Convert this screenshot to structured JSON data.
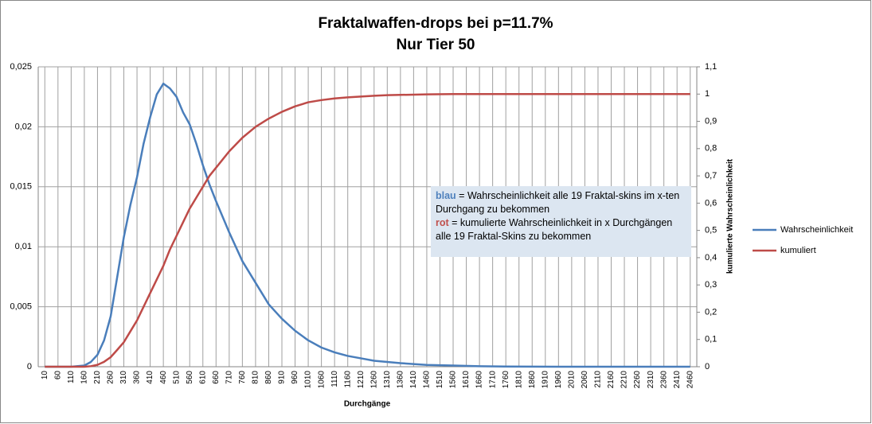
{
  "chart_data": {
    "type": "line",
    "title": "Fraktalwaffen-drops bei p=11.7%",
    "subtitle": "Nur Tier 50",
    "x_label": "Durchgänge",
    "y2_label": "kumulierte Wahrscheinlichkeit",
    "annotation": [
      {
        "text": "blau",
        "color": "#4f81bd"
      },
      {
        "text": " = Wahrscheinlichkeit alle 19 Fraktal-skins im x-ten Durchgang zu bekommen"
      },
      {
        "text": "rot",
        "color": "#c0504d"
      },
      {
        "text": " = kumulierte Wahrscheinlichkeit in x Durchgängen alle 19 Fraktal-Skins zu bekommen"
      }
    ],
    "x": [
      10,
      60,
      110,
      160,
      185,
      210,
      235,
      260,
      285,
      310,
      335,
      360,
      385,
      410,
      435,
      460,
      485,
      510,
      535,
      560,
      585,
      610,
      635,
      660,
      710,
      760,
      810,
      860,
      910,
      960,
      1010,
      1060,
      1110,
      1160,
      1210,
      1260,
      1310,
      1360,
      1460,
      1560,
      1660,
      1760,
      1960,
      2160,
      2360,
      2460
    ],
    "series": [
      {
        "name": "Wahrscheinlichkeit",
        "color": "#4a7ebb",
        "axis": "y",
        "values": [
          0,
          0,
          0,
          0.0001,
          0.0004,
          0.001,
          0.0022,
          0.0042,
          0.0075,
          0.0108,
          0.0135,
          0.0158,
          0.0186,
          0.0208,
          0.0227,
          0.0236,
          0.0232,
          0.0225,
          0.0212,
          0.0202,
          0.0186,
          0.0168,
          0.0152,
          0.0138,
          0.0112,
          0.0088,
          0.007,
          0.0052,
          0.004,
          0.003,
          0.0022,
          0.0016,
          0.0012,
          0.0009,
          0.0007,
          0.0005,
          0.0004,
          0.0003,
          0.00015,
          0.0001,
          4e-05,
          2e-05,
          0,
          0,
          0,
          0
        ]
      },
      {
        "name": "kumuliert",
        "color": "#be4b48",
        "axis": "y2",
        "values": [
          0,
          0,
          0,
          0,
          0.002,
          0.007,
          0.018,
          0.035,
          0.062,
          0.09,
          0.13,
          0.17,
          0.22,
          0.27,
          0.32,
          0.37,
          0.43,
          0.48,
          0.53,
          0.58,
          0.62,
          0.66,
          0.7,
          0.73,
          0.79,
          0.84,
          0.88,
          0.91,
          0.935,
          0.955,
          0.97,
          0.978,
          0.984,
          0.988,
          0.991,
          0.994,
          0.996,
          0.997,
          0.999,
          1,
          1,
          1,
          1,
          1,
          1,
          1
        ]
      }
    ],
    "xlim": [
      -15,
      2485
    ],
    "xticks": [
      10,
      60,
      110,
      160,
      210,
      260,
      310,
      360,
      410,
      460,
      510,
      560,
      610,
      660,
      710,
      760,
      810,
      860,
      910,
      960,
      1010,
      1060,
      1110,
      1160,
      1210,
      1260,
      1310,
      1360,
      1410,
      1460,
      1510,
      1560,
      1610,
      1660,
      1710,
      1760,
      1810,
      1860,
      1910,
      1960,
      2010,
      2060,
      2110,
      2160,
      2210,
      2260,
      2310,
      2360,
      2410,
      2460
    ],
    "ylim": [
      0,
      0.025
    ],
    "yticks": [
      0,
      {
        "value": 0.005,
        "label": "0,005"
      },
      {
        "value": 0.01,
        "label": "0,01"
      },
      {
        "value": 0.015,
        "label": "0,015"
      },
      {
        "value": 0.02,
        "label": "0,02"
      },
      {
        "value": 0.025,
        "label": "0,025"
      }
    ],
    "y2lim": [
      0,
      1.1
    ],
    "y2ticks": [
      0,
      {
        "value": 0.1,
        "label": "0,1"
      },
      {
        "value": 0.2,
        "label": "0,2"
      },
      {
        "value": 0.3,
        "label": "0,3"
      },
      {
        "value": 0.4,
        "label": "0,4"
      },
      {
        "value": 0.5,
        "label": "0,5"
      },
      {
        "value": 0.6,
        "label": "0,6"
      },
      {
        "value": 0.7,
        "label": "0,7"
      },
      {
        "value": 0.8,
        "label": "0,8"
      },
      {
        "value": 0.9,
        "label": "0,9"
      },
      1,
      {
        "value": 1.1,
        "label": "1,1"
      }
    ],
    "grid": true,
    "legend": "right"
  }
}
